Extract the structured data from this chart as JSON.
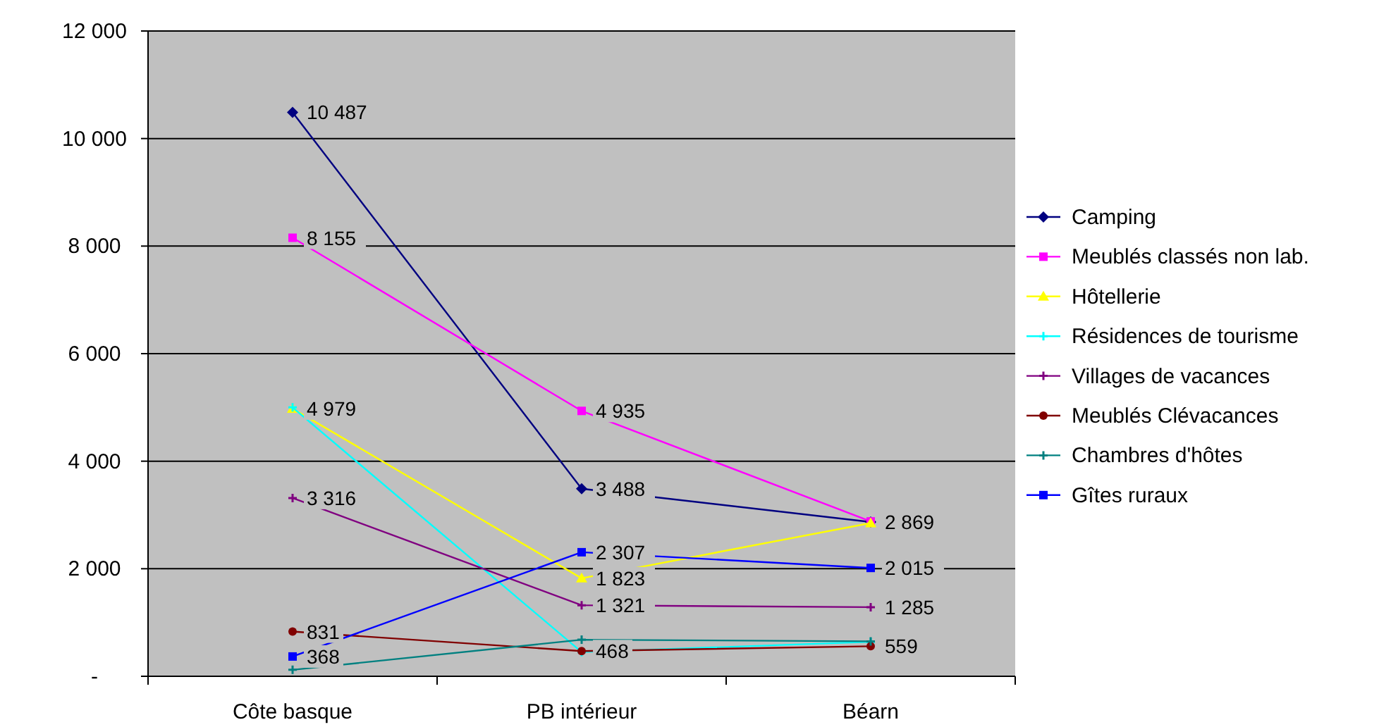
{
  "chart_data": {
    "type": "line",
    "categories": [
      "Côte basque",
      "PB intérieur",
      "Béarn"
    ],
    "ylim": [
      0,
      12000
    ],
    "yticks": [
      {
        "value": 0,
        "label": "-"
      },
      {
        "value": 2000,
        "label": "2 000"
      },
      {
        "value": 4000,
        "label": "4 000"
      },
      {
        "value": 6000,
        "label": "6 000"
      },
      {
        "value": 8000,
        "label": "8 000"
      },
      {
        "value": 10000,
        "label": "10 000"
      },
      {
        "value": 12000,
        "label": "12 000"
      }
    ],
    "grid": "y",
    "legend": "right",
    "line_style": "solid",
    "series": [
      {
        "name": "Camping",
        "color": "#000080",
        "marker": "diamond",
        "values": [
          10487,
          3488,
          2869
        ],
        "value_labels": [
          "10 487",
          "3 488",
          "2 869"
        ]
      },
      {
        "name": "Meublés classés non lab.",
        "color": "#ff00ff",
        "marker": "square",
        "values": [
          8155,
          4935,
          2880
        ],
        "value_labels": [
          "8 155",
          "4 935",
          null
        ]
      },
      {
        "name": "Hôtellerie",
        "color": "#ffff00",
        "marker": "triangle",
        "values": [
          4979,
          1823,
          2850
        ],
        "value_labels": [
          "4 979",
          "1 823",
          null
        ]
      },
      {
        "name": "Résidences de tourisme",
        "color": "#00ffff",
        "marker": "cross",
        "values": [
          5000,
          450,
          640
        ],
        "value_labels": [
          null,
          null,
          null
        ]
      },
      {
        "name": "Villages de vacances",
        "color": "#800080",
        "marker": "cross",
        "values": [
          3316,
          1321,
          1285
        ],
        "value_labels": [
          "3 316",
          "1 321",
          "1 285"
        ]
      },
      {
        "name": "Meublés Clévacances",
        "color": "#800000",
        "marker": "circle",
        "values": [
          831,
          468,
          559
        ],
        "value_labels": [
          "831",
          "468",
          "559"
        ]
      },
      {
        "name": "Chambres d'hôtes",
        "color": "#008080",
        "marker": "cross",
        "values": [
          120,
          680,
          650
        ],
        "value_labels": [
          null,
          null,
          null
        ]
      },
      {
        "name": "Gîtes ruraux",
        "color": "#0000ff",
        "marker": "square",
        "values": [
          368,
          2307,
          2015
        ],
        "value_labels": [
          "368",
          "2 307",
          "2 015"
        ]
      }
    ]
  }
}
